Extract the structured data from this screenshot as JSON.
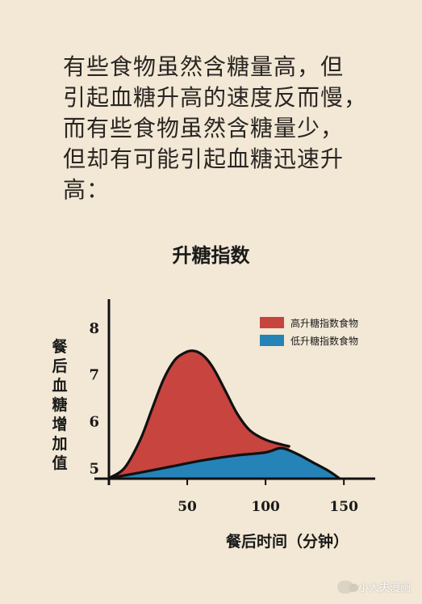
{
  "intro_lines": [
    "有些食物虽然含糖量高，但",
    "引起血糖升高的速度反而慢，",
    "而有些食物虽然含糖量少，",
    "但却有可能引起血糖迅速升",
    "高："
  ],
  "watermark": {
    "text": "小大夫漫画",
    "icon": "wechat-icon"
  },
  "chart_data": {
    "type": "area",
    "title": "升糖指数",
    "ylabel": "餐后血糖增加值",
    "xlabel": "餐后时间（分钟）",
    "xlim": [
      0,
      170
    ],
    "ylim": [
      4.7,
      8.6
    ],
    "xticks": [
      50,
      100,
      150
    ],
    "yticks": [
      5,
      6,
      7,
      8
    ],
    "grid": false,
    "legend_position": "top-right",
    "baseline": 4.77,
    "series": [
      {
        "name": "高升糖指数食物",
        "color": "#c8443f",
        "x": [
          0,
          10,
          20,
          28,
          35,
          42,
          48,
          53,
          58,
          63,
          68,
          75,
          82,
          90,
          100,
          110,
          115
        ],
        "y": [
          4.78,
          5.0,
          5.6,
          6.3,
          6.9,
          7.3,
          7.45,
          7.5,
          7.45,
          7.3,
          7.05,
          6.6,
          6.15,
          5.8,
          5.6,
          5.5,
          5.46
        ]
      },
      {
        "name": "低升糖指数食物",
        "color": "#2583b8",
        "x": [
          0,
          20,
          40,
          60,
          80,
          100,
          110,
          120,
          130,
          140,
          147
        ],
        "y": [
          4.78,
          4.9,
          5.03,
          5.16,
          5.26,
          5.33,
          5.42,
          5.3,
          5.12,
          4.94,
          4.78
        ]
      }
    ]
  }
}
